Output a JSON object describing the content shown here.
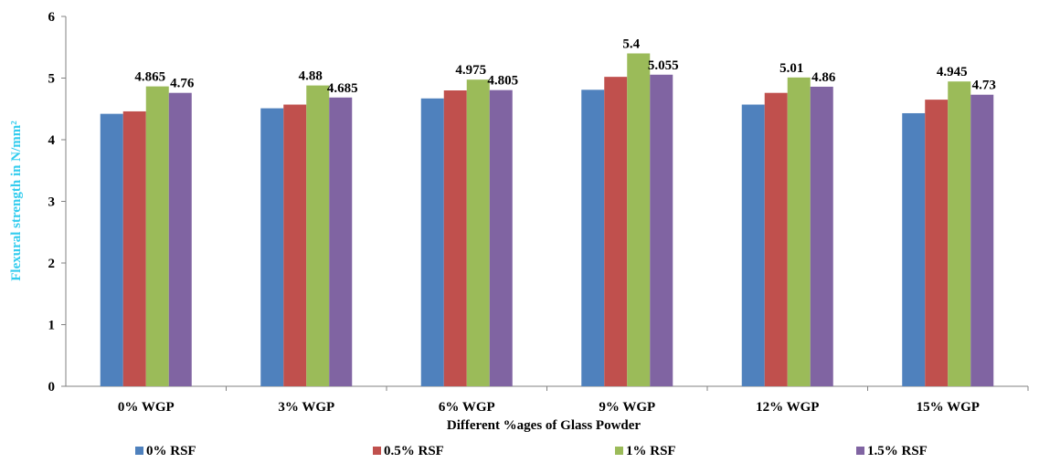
{
  "chart_data": {
    "type": "bar",
    "title": "",
    "xlabel": "Different %ages of Glass Powder",
    "ylabel": "Flexural strength in N/mm²",
    "ylabel_color": "#33CCEE",
    "ylim": [
      0,
      6
    ],
    "yticks": [
      "0",
      "1",
      "2",
      "3",
      "4",
      "5",
      "6"
    ],
    "grid": false,
    "legend_position": "bottom",
    "categories": [
      "0% WGP",
      "3% WGP",
      "6% WGP",
      "9% WGP",
      "12% WGP",
      "15% WGP"
    ],
    "series": [
      {
        "name": "0% RSF",
        "color": "#4F81BD",
        "values": [
          4.42,
          4.51,
          4.67,
          4.81,
          4.57,
          4.43
        ],
        "labels": [
          "",
          "",
          "",
          "",
          "",
          ""
        ]
      },
      {
        "name": "0.5% RSF",
        "color": "#C0504D",
        "values": [
          4.46,
          4.57,
          4.8,
          5.02,
          4.76,
          4.65
        ],
        "labels": [
          "",
          "",
          "",
          "",
          "",
          ""
        ]
      },
      {
        "name": "1% RSF",
        "color": "#9BBB59",
        "values": [
          4.865,
          4.88,
          4.975,
          5.4,
          5.01,
          4.945
        ],
        "labels": [
          "4.865",
          "4.88",
          "4.975",
          "5.4",
          "5.01",
          "4.945"
        ]
      },
      {
        "name": "1.5% RSF",
        "color": "#8064A2",
        "values": [
          4.76,
          4.685,
          4.805,
          5.055,
          4.86,
          4.73
        ],
        "labels": [
          "4.76",
          "4.685",
          "4.805",
          "5.055",
          "4.86",
          "4.73"
        ]
      }
    ]
  }
}
